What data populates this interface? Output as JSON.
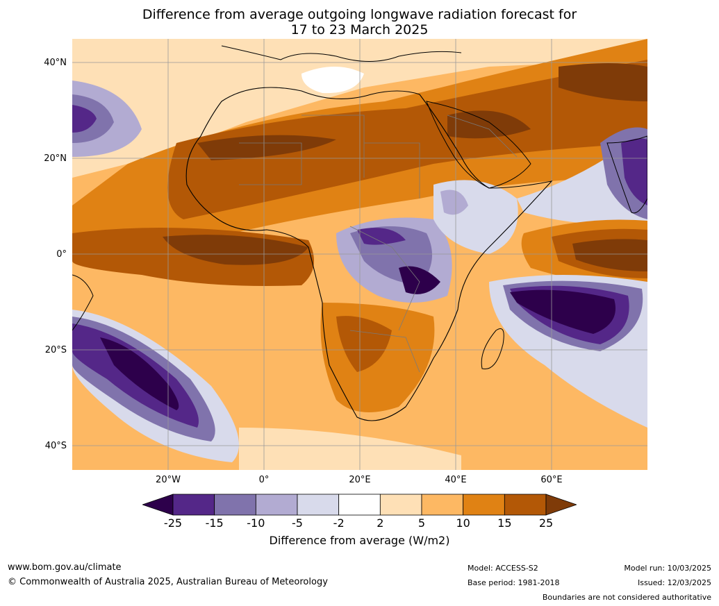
{
  "title_line1": "Difference from average outgoing longwave radiation forecast for",
  "title_line2": "17 to 23 March 2025",
  "map": {
    "lat_labels": [
      "40°N",
      "20°N",
      "0°",
      "20°S",
      "40°S"
    ],
    "lon_labels": [
      "20°W",
      "0°",
      "20°E",
      "40°E",
      "60°E"
    ]
  },
  "colorbar": {
    "label": "Difference from average (W/m2)",
    "ticks": [
      "-25",
      "-15",
      "-10",
      "-5",
      "-2",
      "2",
      "5",
      "10",
      "15",
      "25"
    ],
    "colors": [
      "#2d004b",
      "#542788",
      "#8073ac",
      "#b2abd2",
      "#d8daeb",
      "#ffffff",
      "#fee0b6",
      "#fdb863",
      "#e08214",
      "#b35806",
      "#7f3b08"
    ]
  },
  "footer": {
    "website": "www.bom.gov.au/climate",
    "copyright": "© Commonwealth of Australia 2025, Australian Bureau of Meteorology",
    "model": "Model: ACCESS-S2",
    "base_period": "Base period: 1981-2018",
    "model_run": "Model run: 10/03/2025",
    "issued": "Issued: 12/03/2025",
    "boundaries": "Boundaries are not considered authoritative"
  }
}
